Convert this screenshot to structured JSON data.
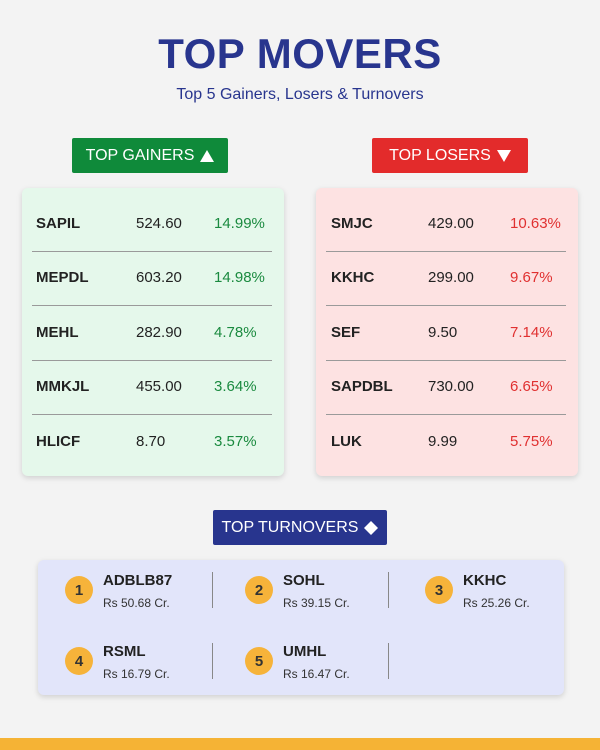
{
  "header": {
    "title": "TOP MOVERS",
    "subtitle": "Top 5 Gainers, Losers & Turnovers"
  },
  "gainers": {
    "label": "TOP GAINERS",
    "rows": [
      [
        "SAPIL",
        "524.60",
        "14.99%"
      ],
      [
        "MEPDL",
        "603.20",
        "14.98%"
      ],
      [
        "MEHL",
        "282.90",
        "4.78%"
      ],
      [
        "MMKJL",
        "455.00",
        "3.64%"
      ],
      [
        "HLICF",
        "8.70",
        "3.57%"
      ]
    ]
  },
  "losers": {
    "label": "TOP LOSERS",
    "rows": [
      [
        "SMJC",
        "429.00",
        "10.63%"
      ],
      [
        "KKHC",
        "299.00",
        "9.67%"
      ],
      [
        "SEF",
        "9.50",
        "7.14%"
      ],
      [
        "SAPDBL",
        "730.00",
        "6.65%"
      ],
      [
        "LUK",
        "9.99",
        "5.75%"
      ]
    ]
  },
  "turnovers": {
    "label": "TOP TURNOVERS",
    "items": [
      {
        "rank": 1,
        "symbol": "ADBLB87",
        "amount": "Rs 50.68 Cr."
      },
      {
        "rank": 2,
        "symbol": "SOHL",
        "amount": "Rs 39.15 Cr."
      },
      {
        "rank": 3,
        "symbol": "KKHC",
        "amount": "Rs 25.26 Cr."
      },
      {
        "rank": 4,
        "symbol": "RSML",
        "amount": "Rs 16.79 Cr."
      },
      {
        "rank": 5,
        "symbol": "UMHL",
        "amount": "Rs 16.47 Cr."
      }
    ]
  }
}
